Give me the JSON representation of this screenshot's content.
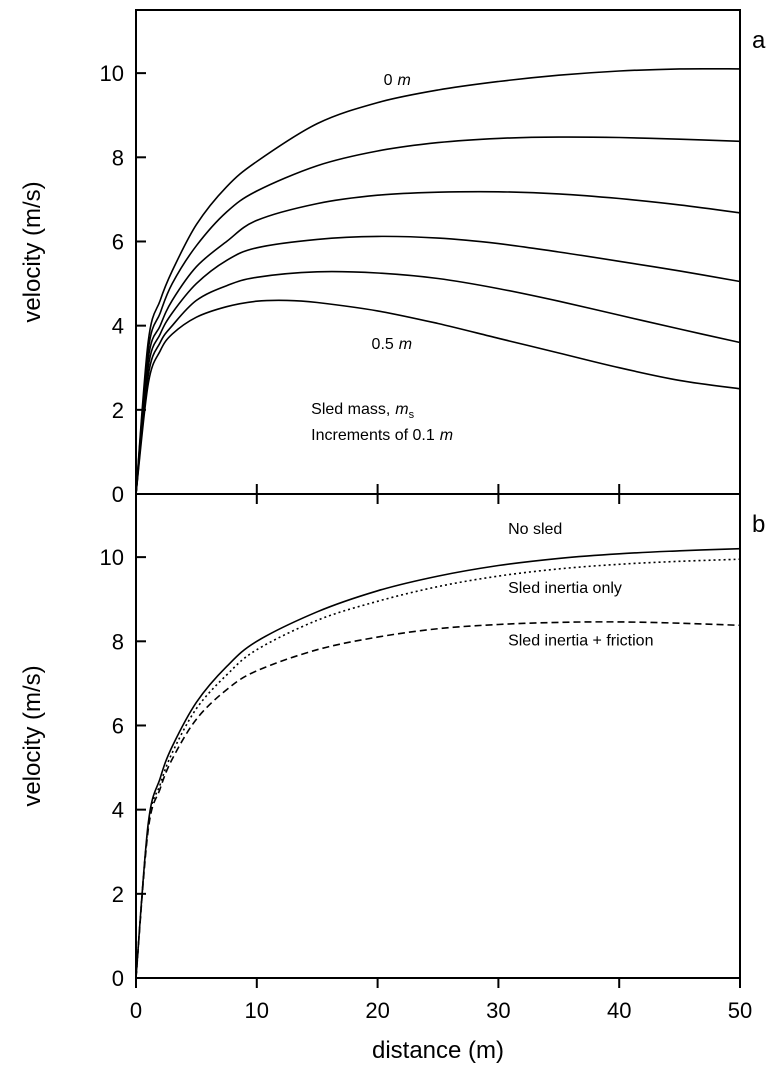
{
  "chart_data": [
    {
      "type": "line",
      "panel_label": "a",
      "xlabel": "",
      "ylabel": "velocity (m/s)",
      "xlim": [
        0,
        50
      ],
      "ylim": [
        0,
        11.5
      ],
      "x_ticks": [
        0,
        10,
        20,
        30,
        40,
        50
      ],
      "y_ticks": [
        0,
        2,
        4,
        6,
        8,
        10
      ],
      "y_tick_labels": [
        "0",
        "2",
        "4",
        "6",
        "8",
        "10"
      ],
      "grid": false,
      "series": [
        {
          "name": "0 m",
          "x": [
            0,
            1,
            2,
            3,
            5,
            7.5,
            10,
            15,
            20,
            25,
            30,
            35,
            40,
            45,
            50
          ],
          "values": [
            0,
            3.6,
            4.6,
            5.3,
            6.4,
            7.3,
            7.9,
            8.8,
            9.3,
            9.6,
            9.8,
            9.95,
            10.05,
            10.1,
            10.1
          ]
        },
        {
          "x": [
            0,
            1,
            2,
            3,
            5,
            7.5,
            10,
            15,
            20,
            25,
            30,
            35,
            40,
            45,
            50
          ],
          "values": [
            0,
            3.4,
            4.3,
            5.0,
            5.9,
            6.7,
            7.2,
            7.8,
            8.15,
            8.35,
            8.45,
            8.48,
            8.47,
            8.43,
            8.38
          ]
        },
        {
          "x": [
            0,
            1,
            2,
            3,
            5,
            7.5,
            10,
            15,
            20,
            25,
            30,
            35,
            40,
            45,
            50
          ],
          "values": [
            0,
            3.2,
            4.0,
            4.6,
            5.4,
            6.0,
            6.5,
            6.9,
            7.1,
            7.17,
            7.18,
            7.13,
            7.02,
            6.87,
            6.68
          ]
        },
        {
          "x": [
            0,
            1,
            2,
            3,
            5,
            7.5,
            10,
            15,
            20,
            25,
            30,
            35,
            40,
            45,
            50
          ],
          "values": [
            0,
            3.0,
            3.8,
            4.3,
            5.0,
            5.55,
            5.85,
            6.05,
            6.12,
            6.08,
            5.95,
            5.75,
            5.53,
            5.3,
            5.05
          ]
        },
        {
          "x": [
            0,
            1,
            2,
            3,
            5,
            7.5,
            10,
            15,
            20,
            25,
            30,
            35,
            40,
            45,
            50
          ],
          "values": [
            0,
            2.8,
            3.6,
            4.0,
            4.6,
            4.95,
            5.15,
            5.28,
            5.25,
            5.12,
            4.88,
            4.58,
            4.25,
            3.92,
            3.6
          ]
        },
        {
          "name": "0.5 m",
          "x": [
            0,
            1,
            2,
            3,
            5,
            7.5,
            10,
            12.5,
            15,
            20,
            25,
            30,
            35,
            40,
            45,
            50
          ],
          "values": [
            0,
            2.6,
            3.4,
            3.8,
            4.2,
            4.45,
            4.58,
            4.6,
            4.55,
            4.35,
            4.05,
            3.7,
            3.35,
            3.0,
            2.7,
            2.5
          ]
        }
      ],
      "annotations": [
        {
          "text": "0",
          "italic_suffix": "m",
          "x": 20.5,
          "y": 9.72
        },
        {
          "text": "0.5",
          "italic_suffix": "m",
          "x": 19.5,
          "y": 3.45
        },
        {
          "text": "Sled mass,",
          "italic_suffix": "m",
          "subscript": "s",
          "x": 14.5,
          "y": 1.9
        },
        {
          "text": "Increments of 0.1",
          "italic_suffix": "m",
          "x": 14.5,
          "y": 1.28
        }
      ]
    },
    {
      "type": "line",
      "panel_label": "b",
      "xlabel": "distance (m)",
      "ylabel": "velocity (m/s)",
      "xlim": [
        0,
        50
      ],
      "ylim": [
        0,
        11.5
      ],
      "x_ticks": [
        0,
        10,
        20,
        30,
        40,
        50
      ],
      "x_tick_labels": [
        "0",
        "10",
        "20",
        "30",
        "40",
        "50"
      ],
      "y_ticks": [
        0,
        2,
        4,
        6,
        8,
        10
      ],
      "y_tick_labels": [
        "0",
        "2",
        "4",
        "6",
        "8",
        "10"
      ],
      "grid": false,
      "series": [
        {
          "name": "No sled",
          "dash": "solid",
          "x": [
            0,
            1,
            2,
            3,
            5,
            7.5,
            10,
            15,
            20,
            25,
            30,
            35,
            40,
            45,
            50
          ],
          "values": [
            0,
            3.65,
            4.75,
            5.5,
            6.55,
            7.4,
            8.0,
            8.7,
            9.2,
            9.55,
            9.8,
            9.97,
            10.08,
            10.15,
            10.2
          ]
        },
        {
          "name": "Sled inertia only",
          "dash": "dotted",
          "x": [
            0,
            1,
            2,
            3,
            5,
            7.5,
            10,
            15,
            20,
            25,
            30,
            35,
            40,
            45,
            50
          ],
          "values": [
            0,
            3.6,
            4.6,
            5.35,
            6.4,
            7.2,
            7.8,
            8.5,
            8.95,
            9.3,
            9.55,
            9.72,
            9.83,
            9.9,
            9.95
          ]
        },
        {
          "name": "Sled inertia + friction",
          "dash": "dashed",
          "x": [
            0,
            1,
            2,
            3,
            5,
            7.5,
            10,
            15,
            20,
            25,
            30,
            35,
            40,
            45,
            50
          ],
          "values": [
            0,
            3.5,
            4.5,
            5.2,
            6.15,
            6.85,
            7.3,
            7.8,
            8.1,
            8.3,
            8.4,
            8.45,
            8.46,
            8.43,
            8.38
          ]
        }
      ],
      "annotations": [
        {
          "text": "No sled",
          "x": 30.8,
          "y": 10.55
        },
        {
          "text": "Sled inertia only",
          "x": 30.8,
          "y": 9.15
        },
        {
          "text": "Sled inertia + friction",
          "x": 30.8,
          "y": 7.9
        }
      ]
    }
  ]
}
